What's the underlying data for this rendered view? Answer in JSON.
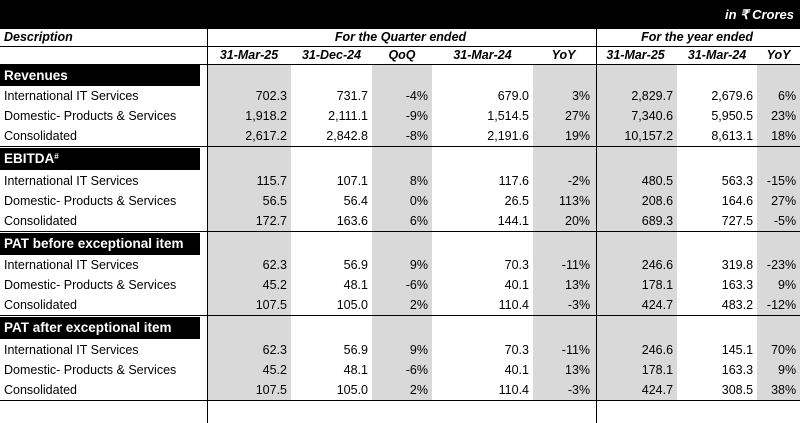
{
  "currency_note": "in ₹ Crores",
  "header": {
    "description": "Description",
    "quarter_group": "For the Quarter ended",
    "year_group": "For the year ended",
    "columns": [
      "31-Mar-25",
      "31-Dec-24",
      "QoQ",
      "31-Mar-24",
      "YoY",
      "31-Mar-25",
      "31-Mar-24",
      "YoY"
    ]
  },
  "sections": [
    {
      "title": "Revenues",
      "rows": [
        {
          "label": "International IT Services",
          "values": [
            "702.3",
            "731.7",
            "-4%",
            "679.0",
            "3%",
            "2,829.7",
            "2,679.6",
            "6%"
          ]
        },
        {
          "label": "Domestic- Products & Services",
          "values": [
            "1,918.2",
            "2,111.1",
            "-9%",
            "1,514.5",
            "27%",
            "7,340.6",
            "5,950.5",
            "23%"
          ]
        },
        {
          "label": "Consolidated",
          "values": [
            "2,617.2",
            "2,842.8",
            "-8%",
            "2,191.6",
            "19%",
            "10,157.2",
            "8,613.1",
            "18%"
          ]
        }
      ]
    },
    {
      "title": "EBITDA",
      "title_mark": "#",
      "rows": [
        {
          "label": "International IT Services",
          "values": [
            "115.7",
            "107.1",
            "8%",
            "117.6",
            "-2%",
            "480.5",
            "563.3",
            "-15%"
          ]
        },
        {
          "label": "Domestic- Products & Services",
          "values": [
            "56.5",
            "56.4",
            "0%",
            "26.5",
            "113%",
            "208.6",
            "164.6",
            "27%"
          ]
        },
        {
          "label": "Consolidated",
          "values": [
            "172.7",
            "163.6",
            "6%",
            "144.1",
            "20%",
            "689.3",
            "727.5",
            "-5%"
          ]
        }
      ]
    },
    {
      "title": "PAT before exceptional item",
      "rows": [
        {
          "label": "International IT Services",
          "values": [
            "62.3",
            "56.9",
            "9%",
            "70.3",
            "-11%",
            "246.6",
            "319.8",
            "-23%"
          ]
        },
        {
          "label": "Domestic- Products & Services",
          "values": [
            "45.2",
            "48.1",
            "-6%",
            "40.1",
            "13%",
            "178.1",
            "163.3",
            "9%"
          ]
        },
        {
          "label": "Consolidated",
          "values": [
            "107.5",
            "105.0",
            "2%",
            "110.4",
            "-3%",
            "424.7",
            "483.2",
            "-12%"
          ]
        }
      ]
    },
    {
      "title": "PAT after exceptional item",
      "rows": [
        {
          "label": "International IT Services",
          "values": [
            "62.3",
            "56.9",
            "9%",
            "70.3",
            "-11%",
            "246.6",
            "145.1",
            "70%"
          ]
        },
        {
          "label": "Domestic- Products & Services",
          "values": [
            "45.2",
            "48.1",
            "-6%",
            "40.1",
            "13%",
            "178.1",
            "163.3",
            "9%"
          ]
        },
        {
          "label": "Consolidated",
          "values": [
            "107.5",
            "105.0",
            "2%",
            "110.4",
            "-3%",
            "424.7",
            "308.5",
            "38%"
          ]
        }
      ]
    }
  ]
}
